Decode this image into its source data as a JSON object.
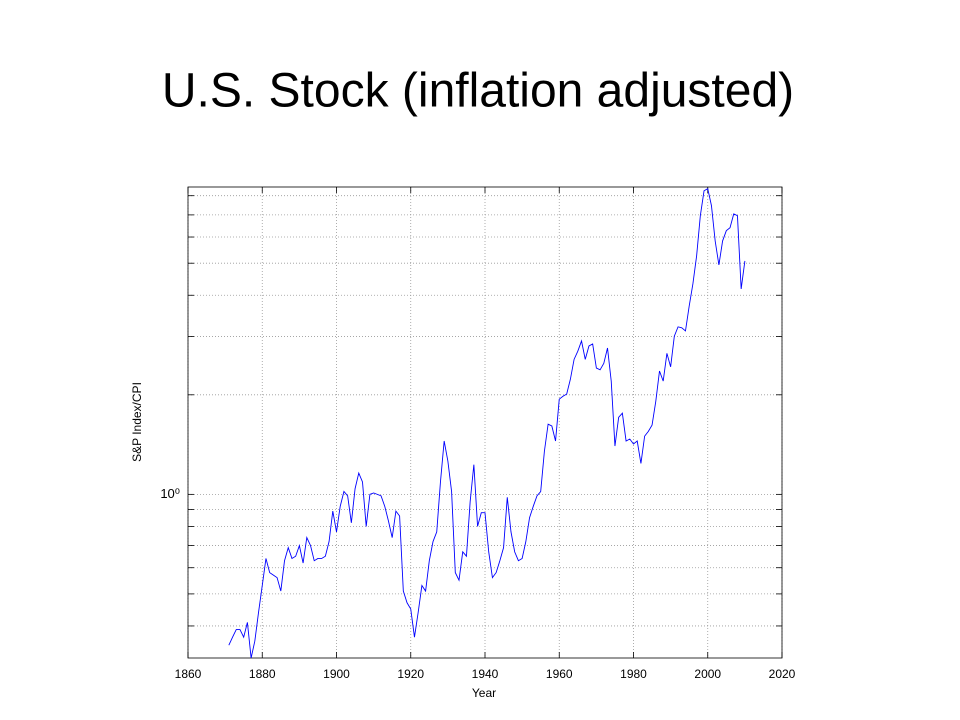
{
  "chart_data": {
    "type": "line",
    "title": "U.S. Stock (inflation adjusted)",
    "xlabel": "Year",
    "ylabel": "S&P Index/CPI",
    "x": [
      1871,
      1872,
      1873,
      1874,
      1875,
      1876,
      1877,
      1878,
      1879,
      1880,
      1881,
      1882,
      1883,
      1884,
      1885,
      1886,
      1887,
      1888,
      1889,
      1890,
      1891,
      1892,
      1893,
      1894,
      1895,
      1896,
      1897,
      1898,
      1899,
      1900,
      1901,
      1902,
      1903,
      1904,
      1905,
      1906,
      1907,
      1908,
      1909,
      1910,
      1911,
      1912,
      1913,
      1914,
      1915,
      1916,
      1917,
      1918,
      1919,
      1920,
      1921,
      1922,
      1923,
      1924,
      1925,
      1926,
      1927,
      1928,
      1929,
      1930,
      1931,
      1932,
      1933,
      1934,
      1935,
      1936,
      1937,
      1938,
      1939,
      1940,
      1941,
      1942,
      1943,
      1944,
      1945,
      1946,
      1947,
      1948,
      1949,
      1950,
      1951,
      1952,
      1953,
      1954,
      1955,
      1956,
      1957,
      1958,
      1959,
      1960,
      1961,
      1962,
      1963,
      1964,
      1965,
      1966,
      1967,
      1968,
      1969,
      1970,
      1971,
      1972,
      1973,
      1974,
      1975,
      1976,
      1977,
      1978,
      1979,
      1980,
      1981,
      1982,
      1983,
      1984,
      1985,
      1986,
      1987,
      1988,
      1989,
      1990,
      1991,
      1992,
      1993,
      1994,
      1995,
      1996,
      1997,
      1998,
      1999,
      2000,
      2001,
      2002,
      2003,
      2004,
      2005,
      2006,
      2007,
      2008,
      2009,
      2010
    ],
    "series": [
      {
        "name": "S&P Index/CPI",
        "color": "#0000ff",
        "values": [
          0.35,
          0.37,
          0.39,
          0.39,
          0.37,
          0.41,
          0.32,
          0.36,
          0.44,
          0.53,
          0.64,
          0.58,
          0.57,
          0.56,
          0.51,
          0.63,
          0.69,
          0.64,
          0.65,
          0.7,
          0.62,
          0.74,
          0.7,
          0.63,
          0.64,
          0.64,
          0.65,
          0.72,
          0.89,
          0.77,
          0.92,
          1.02,
          0.99,
          0.82,
          1.04,
          1.16,
          1.09,
          0.8,
          1.0,
          1.01,
          1.0,
          0.99,
          0.92,
          0.83,
          0.74,
          0.89,
          0.86,
          0.51,
          0.47,
          0.45,
          0.37,
          0.44,
          0.53,
          0.51,
          0.63,
          0.72,
          0.77,
          1.09,
          1.45,
          1.26,
          1.02,
          0.58,
          0.55,
          0.67,
          0.65,
          0.95,
          1.23,
          0.8,
          0.88,
          0.88,
          0.67,
          0.56,
          0.58,
          0.63,
          0.69,
          0.98,
          0.77,
          0.67,
          0.63,
          0.64,
          0.72,
          0.85,
          0.92,
          0.99,
          1.02,
          1.35,
          1.63,
          1.61,
          1.45,
          1.94,
          1.98,
          2.01,
          2.23,
          2.56,
          2.71,
          2.91,
          2.56,
          2.81,
          2.85,
          2.41,
          2.38,
          2.49,
          2.77,
          2.2,
          1.4,
          1.71,
          1.76,
          1.45,
          1.47,
          1.42,
          1.45,
          1.24,
          1.5,
          1.55,
          1.62,
          1.91,
          2.36,
          2.2,
          2.67,
          2.43,
          3.01,
          3.21,
          3.19,
          3.12,
          3.71,
          4.33,
          5.26,
          6.96,
          8.28,
          8.4,
          7.46,
          5.84,
          4.94,
          5.84,
          6.27,
          6.4,
          7.05,
          6.96,
          4.18,
          5.08
        ]
      }
    ],
    "xlim": [
      1860,
      2020
    ],
    "xticks": [
      1860,
      1880,
      1900,
      1920,
      1940,
      1960,
      1980,
      2000,
      2020
    ],
    "ylim": [
      0.32,
      8.5
    ],
    "log_y": true,
    "yticks": [
      {
        "value": 1,
        "label": "10⁰"
      }
    ],
    "minor_yticks": [
      0.4,
      0.5,
      0.6,
      0.7,
      0.8,
      0.9,
      2,
      3,
      4,
      5,
      6,
      7,
      8
    ],
    "grid": true
  }
}
